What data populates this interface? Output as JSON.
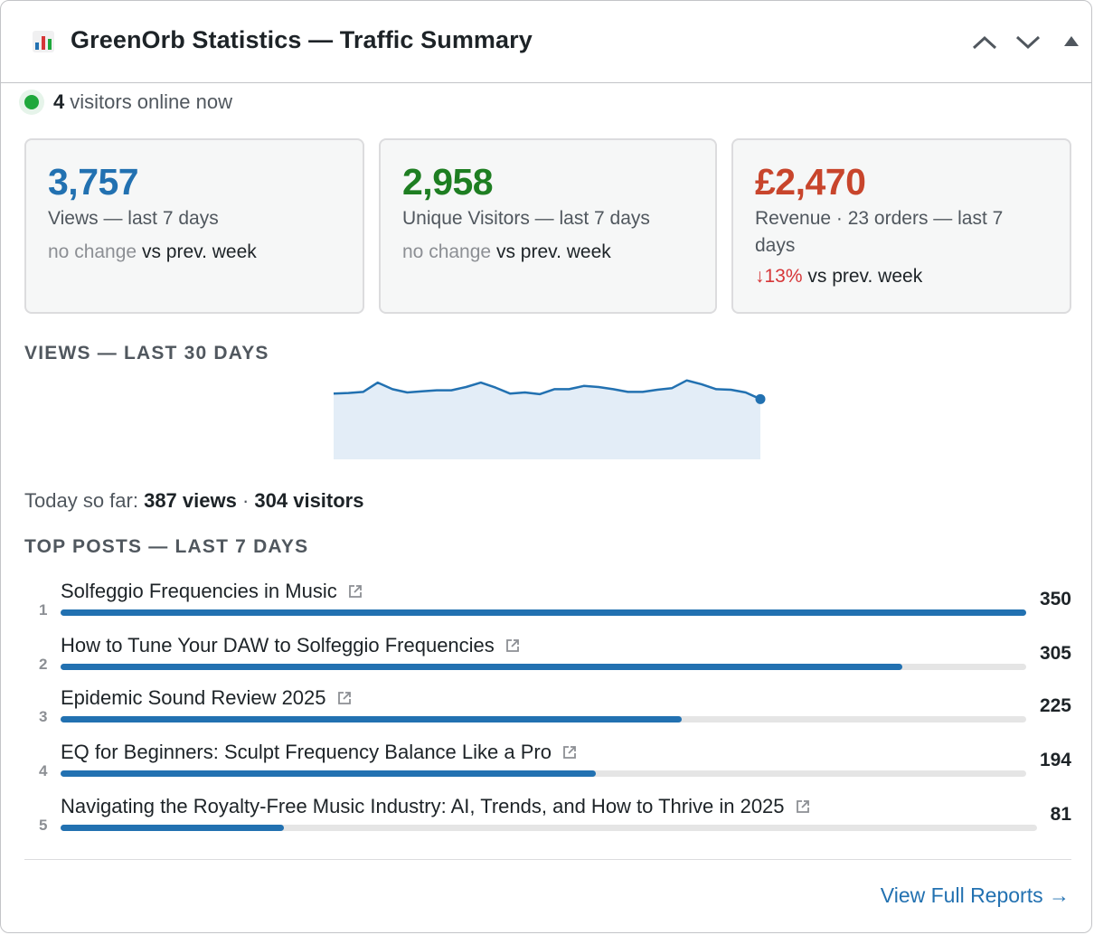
{
  "header": {
    "title": "GreenOrb Statistics — Traffic Summary",
    "icon": "bar-chart-icon",
    "controls": [
      "move-up-icon",
      "move-down-icon",
      "collapse-icon"
    ]
  },
  "online": {
    "count": "4",
    "text": "visitors online now"
  },
  "cards": [
    {
      "value": "3,757",
      "label": "Views — last 7 days",
      "change": "no change",
      "suffix": "vs prev. week",
      "color": "#2271b1"
    },
    {
      "value": "2,958",
      "label": "Unique Visitors — last 7 days",
      "change": "no change",
      "suffix": "vs prev. week",
      "color": "#1e7e22"
    },
    {
      "value": "£2,470",
      "label": "Revenue · 23 orders — last 7 days",
      "change_arrow": "↓",
      "change": "13%",
      "suffix": "vs prev. week",
      "color": "#c8452c"
    }
  ],
  "views_section": {
    "heading": "VIEWS — LAST 30 DAYS"
  },
  "chart_data": {
    "type": "area",
    "title": "",
    "x": [
      1,
      2,
      3,
      4,
      5,
      6,
      7,
      8,
      9,
      10,
      11,
      12,
      13,
      14,
      15,
      16,
      17,
      18,
      19,
      20,
      21,
      22,
      23,
      24,
      25,
      26,
      27,
      28,
      29,
      30
    ],
    "values": [
      120,
      121,
      123,
      140,
      128,
      122,
      124,
      126,
      126,
      132,
      140,
      131,
      120,
      122,
      119,
      128,
      128,
      134,
      132,
      128,
      123,
      123,
      127,
      130,
      144,
      137,
      128,
      127,
      122,
      110
    ],
    "ylim": [
      0,
      160
    ],
    "grid": false,
    "line_color": "#2271b1",
    "fill_color": "#e3edf7"
  },
  "today": {
    "prefix": "Today so far:",
    "views": "387 views",
    "sep": "·",
    "visitors": "304 visitors"
  },
  "top_posts": {
    "heading": "TOP POSTS — LAST 7 DAYS",
    "items": [
      {
        "rank": "1",
        "title": "Solfeggio Frequencies in Music",
        "count": "350",
        "value": 350
      },
      {
        "rank": "2",
        "title": "How to Tune Your DAW to Solfeggio Frequencies",
        "count": "305",
        "value": 305
      },
      {
        "rank": "3",
        "title": "Epidemic Sound Review 2025",
        "count": "225",
        "value": 225
      },
      {
        "rank": "4",
        "title": "EQ for Beginners: Sculpt Frequency Balance Like a Pro",
        "count": "194",
        "value": 194
      },
      {
        "rank": "5",
        "title": "Navigating the Royalty-Free Music Industry: AI, Trends, and How to Thrive in 2025",
        "count": "81",
        "value": 81
      }
    ]
  },
  "footer": {
    "link": "View Full Reports →"
  }
}
